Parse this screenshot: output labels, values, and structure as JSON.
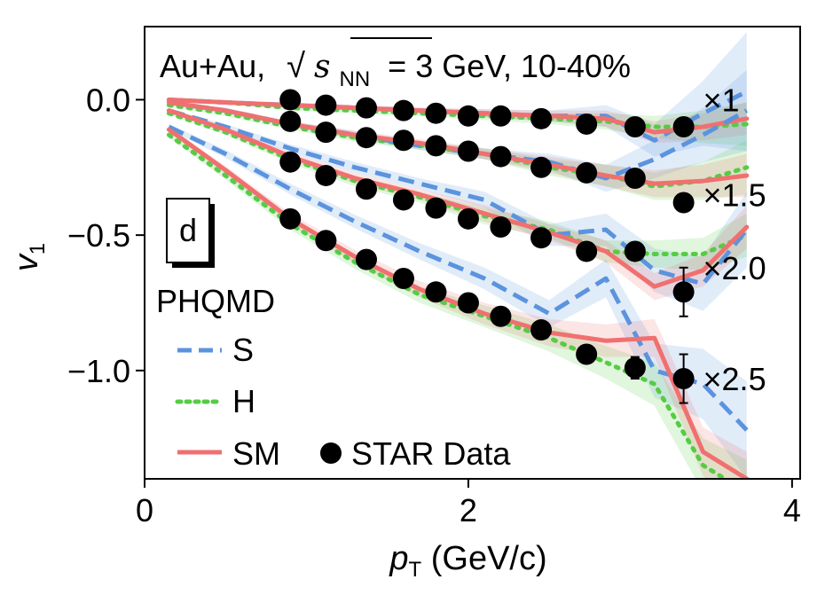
{
  "chart_data": {
    "type": "line",
    "annotation": {
      "system": "Au+Au,",
      "energy_symbol": "s",
      "energy_sub": "NN",
      "energy_value": "= 3 GeV, 10-40%"
    },
    "panel_label": "d",
    "xlabel": {
      "main": "p",
      "sub": "T",
      "unit": " (GeV/c)"
    },
    "ylabel": {
      "main": "v",
      "sub": "1"
    },
    "xlim": [
      0,
      4.05
    ],
    "ylim": [
      -1.4,
      0.27
    ],
    "xticks": [
      0,
      2,
      4
    ],
    "xtick_labels": [
      "0",
      "2",
      "4"
    ],
    "yticks": [
      0.0,
      -0.5,
      -1.0
    ],
    "ytick_labels": [
      "0.0",
      "−0.5",
      "−1.0"
    ],
    "legend": {
      "title": "PHQMD",
      "entries": [
        {
          "label": "S",
          "style": "dashed",
          "color": "#5b93de"
        },
        {
          "label": "H",
          "style": "dotted",
          "color": "#55cc44"
        },
        {
          "label": "SM",
          "style": "solid",
          "color": "#f07070"
        },
        {
          "label": "STAR Data",
          "style": "marker",
          "color": "#000000"
        }
      ]
    },
    "colors": {
      "S": "#5b93de",
      "H": "#55cc44",
      "SM": "#f07070",
      "data": "#000000"
    },
    "groups": [
      {
        "scale_label": "×1",
        "model_x": [
          0.15,
          0.5,
          0.9,
          1.3,
          1.7,
          2.1,
          2.5,
          2.85,
          3.15,
          3.45,
          3.72
        ],
        "S": [
          0.0,
          -0.01,
          -0.02,
          -0.03,
          -0.04,
          -0.05,
          -0.06,
          -0.06,
          -0.15,
          -0.05,
          0.03
        ],
        "S_err": [
          0.005,
          0.005,
          0.01,
          0.01,
          0.01,
          0.015,
          0.02,
          0.04,
          0.06,
          0.12,
          0.22
        ],
        "H": [
          0.0,
          -0.01,
          -0.03,
          -0.04,
          -0.05,
          -0.06,
          -0.07,
          -0.08,
          -0.1,
          -0.1,
          -0.09
        ],
        "H_err": [
          0.005,
          0.005,
          0.01,
          0.01,
          0.01,
          0.015,
          0.02,
          0.03,
          0.04,
          0.06,
          0.08
        ],
        "SM": [
          0.0,
          -0.01,
          -0.02,
          -0.03,
          -0.04,
          -0.05,
          -0.06,
          -0.07,
          -0.12,
          -0.1,
          -0.07
        ],
        "SM_err": [
          0.005,
          0.005,
          0.01,
          0.01,
          0.01,
          0.015,
          0.02,
          0.03,
          0.04,
          0.05,
          0.06
        ],
        "data_x": [
          0.9,
          1.12,
          1.37,
          1.6,
          1.8,
          2.0,
          2.2,
          2.45,
          2.73,
          3.03,
          3.33
        ],
        "data_y": [
          0.0,
          -0.02,
          -0.03,
          -0.04,
          -0.05,
          -0.06,
          -0.06,
          -0.07,
          -0.09,
          -0.1,
          -0.1
        ],
        "data_err": [
          0.01,
          0.01,
          0.01,
          0.01,
          0.01,
          0.01,
          0.01,
          0.015,
          0.02,
          0.03,
          0.03
        ]
      },
      {
        "scale_label": "×1.5",
        "model_x": [
          0.15,
          0.5,
          0.9,
          1.3,
          1.7,
          2.1,
          2.5,
          2.85,
          3.15,
          3.45,
          3.72
        ],
        "S": [
          -0.01,
          -0.04,
          -0.09,
          -0.13,
          -0.17,
          -0.2,
          -0.23,
          -0.29,
          -0.22,
          -0.13,
          -0.04
        ],
        "S_err": [
          0.005,
          0.01,
          0.01,
          0.015,
          0.015,
          0.02,
          0.03,
          0.05,
          0.07,
          0.1,
          0.15
        ],
        "H": [
          -0.02,
          -0.05,
          -0.1,
          -0.14,
          -0.17,
          -0.2,
          -0.25,
          -0.28,
          -0.32,
          -0.3,
          -0.25
        ],
        "H_err": [
          0.005,
          0.01,
          0.01,
          0.015,
          0.015,
          0.02,
          0.03,
          0.04,
          0.05,
          0.07,
          0.1
        ],
        "SM": [
          -0.01,
          -0.04,
          -0.09,
          -0.13,
          -0.16,
          -0.2,
          -0.24,
          -0.28,
          -0.31,
          -0.3,
          -0.28
        ],
        "SM_err": [
          0.005,
          0.01,
          0.01,
          0.015,
          0.015,
          0.02,
          0.03,
          0.04,
          0.05,
          0.06,
          0.08
        ],
        "data_x": [
          0.9,
          1.12,
          1.37,
          1.6,
          1.8,
          2.0,
          2.2,
          2.45,
          2.73,
          3.03,
          3.33
        ],
        "data_y": [
          -0.08,
          -0.12,
          -0.14,
          -0.15,
          -0.17,
          -0.19,
          -0.21,
          -0.25,
          -0.27,
          -0.29,
          -0.38
        ],
        "data_err": [
          0.01,
          0.01,
          0.01,
          0.01,
          0.01,
          0.01,
          0.01,
          0.015,
          0.02,
          0.03,
          0.03
        ]
      },
      {
        "scale_label": "×2.0",
        "model_x": [
          0.15,
          0.5,
          0.9,
          1.3,
          1.7,
          2.1,
          2.5,
          2.85,
          3.15,
          3.45,
          3.72
        ],
        "S": [
          -0.04,
          -0.1,
          -0.18,
          -0.25,
          -0.31,
          -0.37,
          -0.5,
          -0.48,
          -0.63,
          -0.68,
          -0.48
        ],
        "S_err": [
          0.005,
          0.01,
          0.015,
          0.02,
          0.02,
          0.03,
          0.04,
          0.06,
          0.08,
          0.1,
          0.14
        ],
        "H": [
          -0.05,
          -0.12,
          -0.22,
          -0.3,
          -0.36,
          -0.43,
          -0.48,
          -0.56,
          -0.57,
          -0.57,
          -0.5
        ],
        "H_err": [
          0.005,
          0.01,
          0.015,
          0.02,
          0.02,
          0.03,
          0.03,
          0.04,
          0.05,
          0.06,
          0.08
        ],
        "SM": [
          -0.04,
          -0.11,
          -0.21,
          -0.29,
          -0.35,
          -0.42,
          -0.49,
          -0.56,
          -0.69,
          -0.63,
          -0.47
        ],
        "SM_err": [
          0.005,
          0.01,
          0.015,
          0.02,
          0.02,
          0.03,
          0.03,
          0.04,
          0.05,
          0.06,
          0.08
        ],
        "data_x": [
          0.9,
          1.12,
          1.37,
          1.6,
          1.8,
          2.0,
          2.2,
          2.45,
          2.73,
          3.03,
          3.33
        ],
        "data_y": [
          -0.23,
          -0.28,
          -0.33,
          -0.37,
          -0.4,
          -0.44,
          -0.47,
          -0.51,
          -0.56,
          -0.56,
          -0.71
        ],
        "data_err": [
          0.01,
          0.01,
          0.01,
          0.01,
          0.01,
          0.01,
          0.015,
          0.02,
          0.02,
          0.03,
          0.09
        ]
      },
      {
        "scale_label": "×2.5",
        "model_x": [
          0.15,
          0.5,
          0.9,
          1.3,
          1.7,
          2.1,
          2.5,
          2.85,
          3.15,
          3.45,
          3.72
        ],
        "S": [
          -0.1,
          -0.2,
          -0.33,
          -0.45,
          -0.56,
          -0.66,
          -0.79,
          -0.66,
          -1.0,
          -1.05,
          -1.22
        ],
        "S_err": [
          0.01,
          0.015,
          0.02,
          0.025,
          0.03,
          0.04,
          0.05,
          0.07,
          0.1,
          0.13,
          0.18
        ],
        "H": [
          -0.13,
          -0.28,
          -0.46,
          -0.6,
          -0.72,
          -0.8,
          -0.88,
          -0.97,
          -1.05,
          -1.35,
          -1.45
        ],
        "H_err": [
          0.01,
          0.015,
          0.02,
          0.025,
          0.03,
          0.04,
          0.05,
          0.06,
          0.08,
          0.1,
          0.12
        ],
        "SM": [
          -0.11,
          -0.26,
          -0.44,
          -0.58,
          -0.7,
          -0.79,
          -0.86,
          -0.89,
          -0.88,
          -1.3,
          -1.4
        ],
        "SM_err": [
          0.01,
          0.015,
          0.02,
          0.025,
          0.03,
          0.04,
          0.05,
          0.06,
          0.07,
          0.09,
          0.1
        ],
        "data_x": [
          0.9,
          1.12,
          1.37,
          1.6,
          1.8,
          2.0,
          2.2,
          2.45,
          2.73,
          3.03,
          3.33
        ],
        "data_y": [
          -0.44,
          -0.52,
          -0.59,
          -0.66,
          -0.71,
          -0.75,
          -0.8,
          -0.85,
          -0.94,
          -0.99,
          -1.03
        ],
        "data_err": [
          0.01,
          0.01,
          0.01,
          0.015,
          0.015,
          0.015,
          0.015,
          0.02,
          0.02,
          0.04,
          0.09
        ]
      }
    ]
  }
}
